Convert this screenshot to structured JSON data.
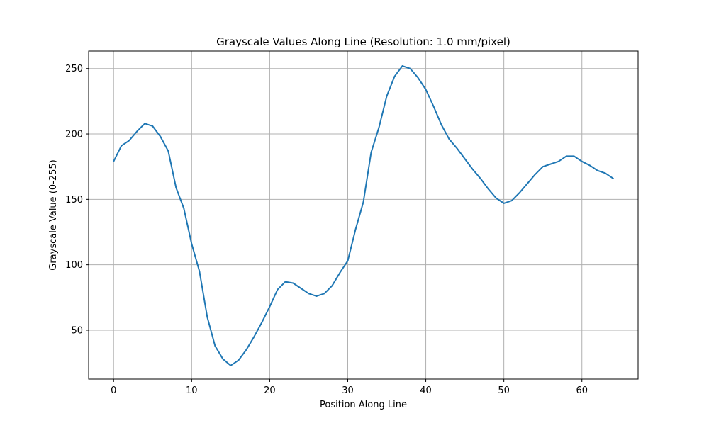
{
  "chart_data": {
    "type": "line",
    "title": "Grayscale Values Along Line (Resolution: 1.0 mm/pixel)",
    "xlabel": "Position Along Line",
    "ylabel": "Grayscale Value (0-255)",
    "xlim": [
      -3.2,
      67.2
    ],
    "ylim": [
      12.6,
      263.4
    ],
    "xticks": [
      0,
      10,
      20,
      30,
      40,
      50,
      60
    ],
    "yticks": [
      50,
      100,
      150,
      200,
      250
    ],
    "grid": true,
    "line_color": "#1f77b4",
    "grid_color": "#b0b0b0",
    "series": [
      {
        "x": [
          0,
          1,
          2,
          3,
          4,
          5,
          6,
          7,
          8,
          9,
          10,
          11,
          12,
          13,
          14,
          15,
          16,
          17,
          18,
          19,
          20,
          21,
          22,
          23,
          24,
          25,
          26,
          27,
          28,
          29,
          30,
          31,
          32,
          33,
          34,
          35,
          36,
          37,
          38,
          39,
          40,
          41,
          42,
          43,
          44,
          45,
          46,
          47,
          48,
          49,
          50,
          51,
          52,
          53,
          54,
          55,
          56,
          57,
          58,
          59,
          60,
          61,
          62,
          63,
          64
        ],
        "values": [
          179,
          191,
          195,
          202,
          208,
          206,
          198,
          187,
          159,
          143,
          116,
          95,
          60,
          38,
          28,
          23,
          27,
          35,
          45,
          56,
          68,
          81,
          87,
          86,
          82,
          78,
          76,
          78,
          84,
          94,
          103,
          127,
          148,
          186,
          205,
          229,
          244,
          252,
          250,
          243,
          234,
          221,
          207,
          196,
          189,
          181,
          173,
          166,
          158,
          151,
          147,
          149,
          155,
          162,
          169,
          175,
          177,
          179,
          183,
          183,
          179,
          176,
          172,
          170,
          166
        ]
      }
    ]
  }
}
